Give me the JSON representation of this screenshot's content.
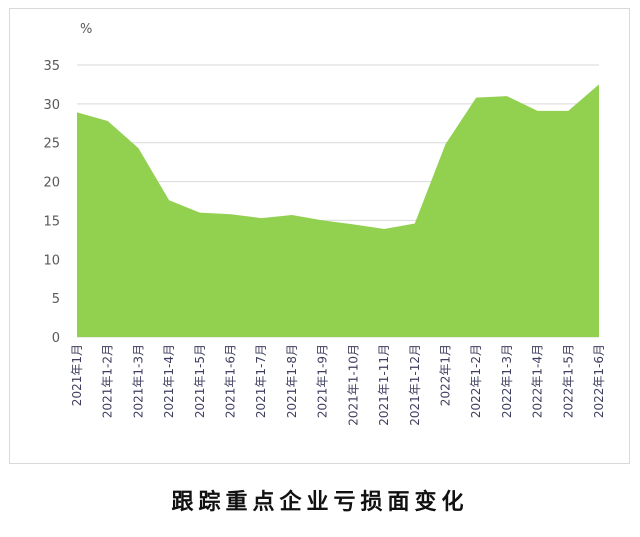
{
  "caption": "跟踪重点企业亏损面变化",
  "chart_data": {
    "type": "area",
    "unit_label": "%",
    "categories": [
      "2021年1月",
      "2021年1-2月",
      "2021年1-3月",
      "2021年1-4月",
      "2021年1-5月",
      "2021年1-6月",
      "2021年1-7月",
      "2021年1-8月",
      "2021年1-9月",
      "2021年1-10月",
      "2021年1-11月",
      "2021年1-12月",
      "2022年1月",
      "2022年1-2月",
      "2022年1-3月",
      "2022年1-4月",
      "2022年1-5月",
      "2022年1-6月"
    ],
    "values": [
      28.9,
      27.8,
      24.3,
      17.6,
      16.0,
      15.8,
      15.3,
      15.7,
      15.0,
      14.5,
      13.9,
      14.6,
      24.8,
      30.8,
      31.0,
      29.1,
      29.1,
      32.5
    ],
    "ylim": [
      0,
      35
    ],
    "yticks": [
      0,
      5,
      10,
      15,
      20,
      25,
      30,
      35
    ],
    "grid": true,
    "colors": {
      "area": "#92d050",
      "grid": "#d9d9d9"
    }
  }
}
